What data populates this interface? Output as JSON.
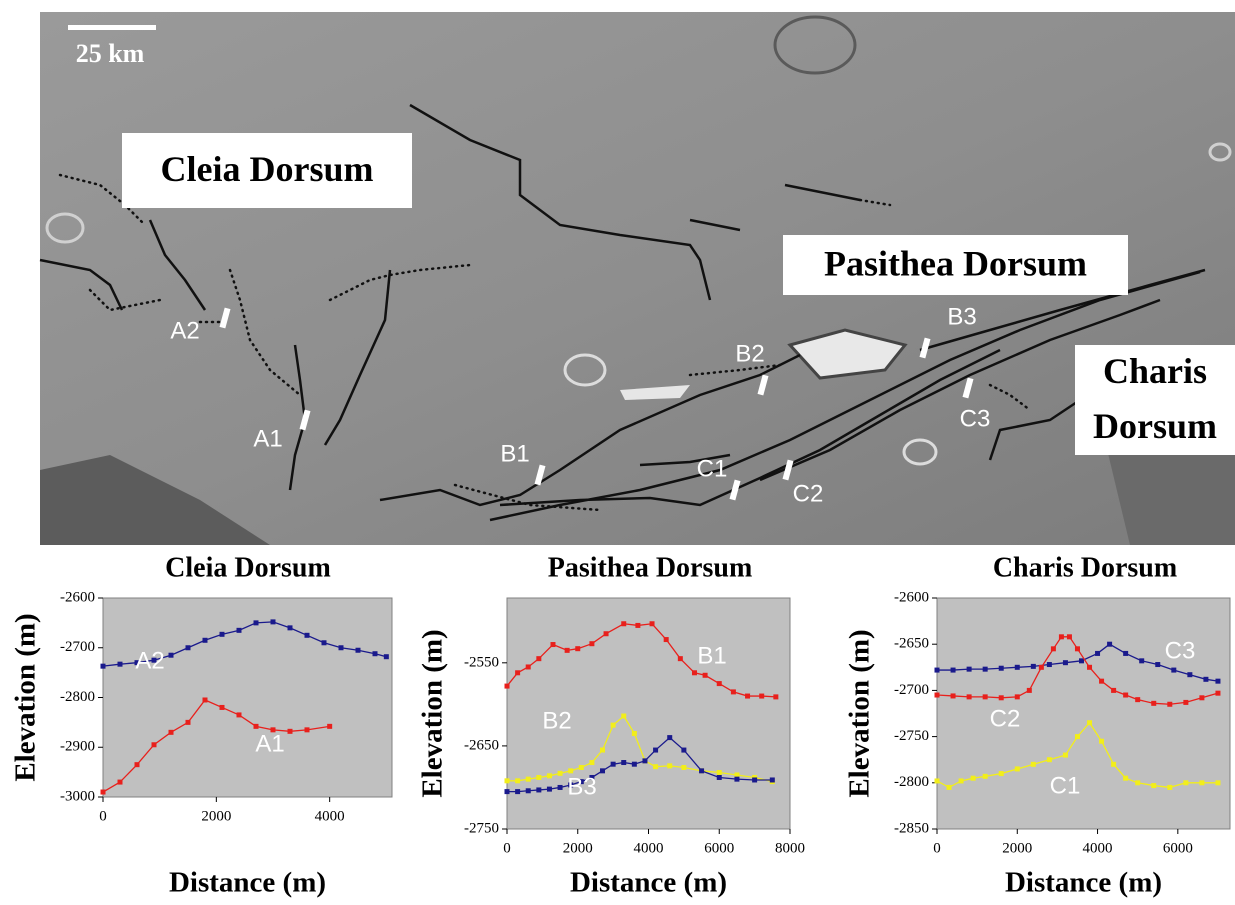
{
  "map": {
    "scale_label": "25 km",
    "regions": [
      [
        "Cleia Dorsum"
      ],
      [
        "Pasithea Dorsum"
      ],
      [
        "Charis",
        "Dorsum"
      ]
    ],
    "profiles": [
      "A1",
      "A2",
      "B1",
      "B2",
      "B3",
      "C1",
      "C2",
      "C3"
    ]
  },
  "chart_data": [
    {
      "type": "line",
      "title": "Cleia Dorsum",
      "xlabel": "Distance (m)",
      "ylabel": "Elevation (m)",
      "xlim": [
        0,
        5100
      ],
      "ylim": [
        -3000,
        -2600
      ],
      "xticks": [
        0,
        2000,
        4000
      ],
      "yticks": [
        -3000,
        -2900,
        -2800,
        -2700,
        -2600
      ],
      "series": [
        {
          "name": "A2",
          "color": "#1a1a8c",
          "x": [
            0,
            300,
            600,
            900,
            1200,
            1500,
            1800,
            2100,
            2400,
            2700,
            3000,
            3300,
            3600,
            3900,
            4200,
            4500,
            4800,
            5000
          ],
          "values": [
            -2737,
            -2733,
            -2730,
            -2725,
            -2715,
            -2700,
            -2685,
            -2673,
            -2665,
            -2650,
            -2648,
            -2660,
            -2675,
            -2690,
            -2700,
            -2705,
            -2712,
            -2718
          ]
        },
        {
          "name": "A1",
          "color": "#e8201c",
          "x": [
            0,
            300,
            600,
            900,
            1200,
            1500,
            1800,
            2100,
            2400,
            2700,
            3000,
            3300,
            3600,
            4000
          ],
          "values": [
            -2990,
            -2970,
            -2935,
            -2895,
            -2870,
            -2850,
            -2805,
            -2820,
            -2835,
            -2858,
            -2865,
            -2868,
            -2865,
            -2858
          ]
        }
      ]
    },
    {
      "type": "line",
      "title": "Pasithea Dorsum",
      "xlabel": "Distance (m)",
      "ylabel": "Elevation (m)",
      "xlim": [
        0,
        8000
      ],
      "ylim": [
        -2750,
        -2472
      ],
      "xticks": [
        0,
        2000,
        4000,
        6000,
        8000
      ],
      "yticks": [
        -2750,
        -2650,
        -2550
      ],
      "series": [
        {
          "name": "B1",
          "color": "#e8201c",
          "x": [
            0,
            300,
            600,
            900,
            1300,
            1700,
            2000,
            2400,
            2800,
            3300,
            3700,
            4100,
            4500,
            4900,
            5300,
            5600,
            6000,
            6400,
            6800,
            7200,
            7600
          ],
          "values": [
            -2578,
            -2562,
            -2555,
            -2545,
            -2528,
            -2535,
            -2533,
            -2527,
            -2515,
            -2503,
            -2505,
            -2503,
            -2522,
            -2545,
            -2562,
            -2565,
            -2575,
            -2585,
            -2590,
            -2590,
            -2591
          ]
        },
        {
          "name": "B2",
          "color": "#f2ee1a",
          "x": [
            0,
            300,
            600,
            900,
            1200,
            1500,
            1800,
            2100,
            2400,
            2700,
            3000,
            3300,
            3600,
            3900,
            4200,
            4600,
            5000,
            5500,
            6000,
            6500,
            7000,
            7500
          ],
          "values": [
            -2692,
            -2692,
            -2690,
            -2688,
            -2686,
            -2683,
            -2680,
            -2676,
            -2670,
            -2655,
            -2625,
            -2614,
            -2635,
            -2668,
            -2675,
            -2674,
            -2676,
            -2680,
            -2682,
            -2685,
            -2688,
            -2693
          ]
        },
        {
          "name": "B3",
          "color": "#1a1a8c",
          "x": [
            0,
            300,
            600,
            900,
            1200,
            1500,
            1800,
            2100,
            2400,
            2700,
            3000,
            3300,
            3600,
            3900,
            4200,
            4600,
            5000,
            5500,
            6000,
            6500,
            7000,
            7500
          ],
          "values": [
            -2705,
            -2705,
            -2704,
            -2703,
            -2702,
            -2700,
            -2697,
            -2693,
            -2688,
            -2680,
            -2672,
            -2670,
            -2672,
            -2668,
            -2655,
            -2640,
            -2655,
            -2680,
            -2688,
            -2690,
            -2691,
            -2691
          ]
        }
      ]
    },
    {
      "type": "line",
      "title": "Charis Dorsum",
      "xlabel": "Distance (m)",
      "ylabel": "Elevation (m)",
      "xlim": [
        0,
        7300
      ],
      "ylim": [
        -2850,
        -2600
      ],
      "xticks": [
        0,
        2000,
        4000,
        6000
      ],
      "yticks": [
        -2850,
        -2800,
        -2750,
        -2700,
        -2650,
        -2600
      ],
      "series": [
        {
          "name": "C3",
          "color": "#1a1a8c",
          "x": [
            0,
            400,
            800,
            1200,
            1600,
            2000,
            2400,
            2800,
            3200,
            3600,
            4000,
            4300,
            4700,
            5100,
            5500,
            5900,
            6300,
            6700,
            7000
          ],
          "values": [
            -2678,
            -2678,
            -2677,
            -2677,
            -2676,
            -2675,
            -2674,
            -2672,
            -2670,
            -2668,
            -2660,
            -2650,
            -2660,
            -2668,
            -2672,
            -2678,
            -2683,
            -2688,
            -2690
          ]
        },
        {
          "name": "C2",
          "color": "#e8201c",
          "x": [
            0,
            400,
            800,
            1200,
            1600,
            2000,
            2300,
            2600,
            2900,
            3100,
            3300,
            3500,
            3800,
            4100,
            4400,
            4700,
            5000,
            5400,
            5800,
            6200,
            6600,
            7000
          ],
          "values": [
            -2705,
            -2706,
            -2707,
            -2707,
            -2708,
            -2707,
            -2700,
            -2675,
            -2655,
            -2642,
            -2642,
            -2655,
            -2675,
            -2690,
            -2700,
            -2705,
            -2710,
            -2714,
            -2715,
            -2713,
            -2708,
            -2703
          ]
        },
        {
          "name": "C1",
          "color": "#f2ee1a",
          "x": [
            0,
            300,
            600,
            900,
            1200,
            1600,
            2000,
            2400,
            2800,
            3200,
            3500,
            3800,
            4100,
            4400,
            4700,
            5000,
            5400,
            5800,
            6200,
            6600,
            7000
          ],
          "values": [
            -2798,
            -2805,
            -2798,
            -2795,
            -2793,
            -2790,
            -2785,
            -2780,
            -2775,
            -2770,
            -2750,
            -2735,
            -2755,
            -2780,
            -2795,
            -2800,
            -2803,
            -2805,
            -2800,
            -2800,
            -2800
          ]
        }
      ]
    }
  ]
}
